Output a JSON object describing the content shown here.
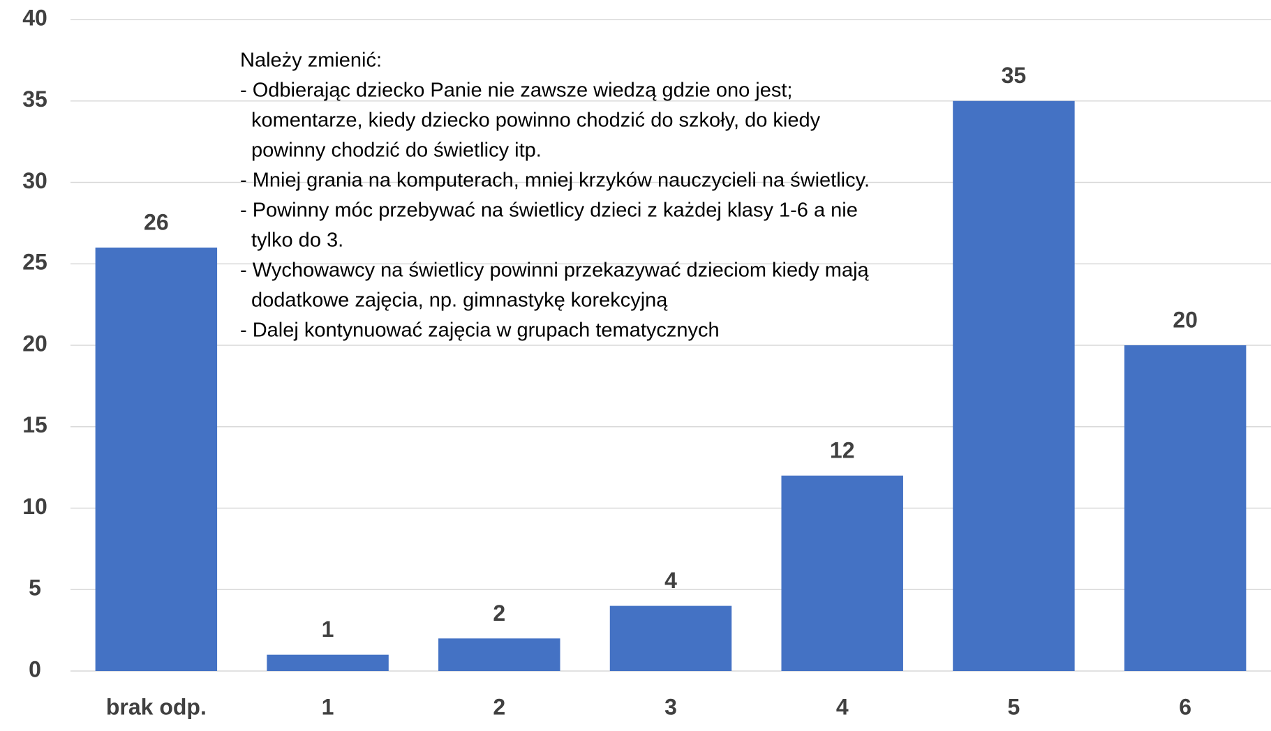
{
  "chart_data": {
    "type": "bar",
    "categories": [
      "brak odp.",
      "1",
      "2",
      "3",
      "4",
      "5",
      "6"
    ],
    "values": [
      26,
      1,
      2,
      4,
      12,
      35,
      20
    ],
    "color": "#4472c4",
    "ylim": [
      0,
      40
    ],
    "yticks": [
      0,
      5,
      10,
      15,
      20,
      25,
      30,
      35,
      40
    ],
    "grid": true,
    "annotation": [
      "Należy zmienić:",
      "- Odbierając dziecko Panie nie zawsze wiedzą gdzie ono jest;",
      "komentarze, kiedy dziecko powinno chodzić do szkoły, do kiedy",
      "powinny chodzić do świetlicy itp.",
      "- Mniej grania na komputerach, mniej krzyków nauczycieli na świetlicy.",
      "- Powinny móc przebywać na świetlicy dzieci z każdej klasy 1-6 a nie",
      "tylko do 3.",
      "- Wychowawcy na świetlicy powinni przekazywać dzieciom kiedy mają",
      "dodatkowe zajęcia, np. gimnastykę korekcyjną",
      "- Dalej kontynuować zajęcia w grupach tematycznych"
    ]
  }
}
